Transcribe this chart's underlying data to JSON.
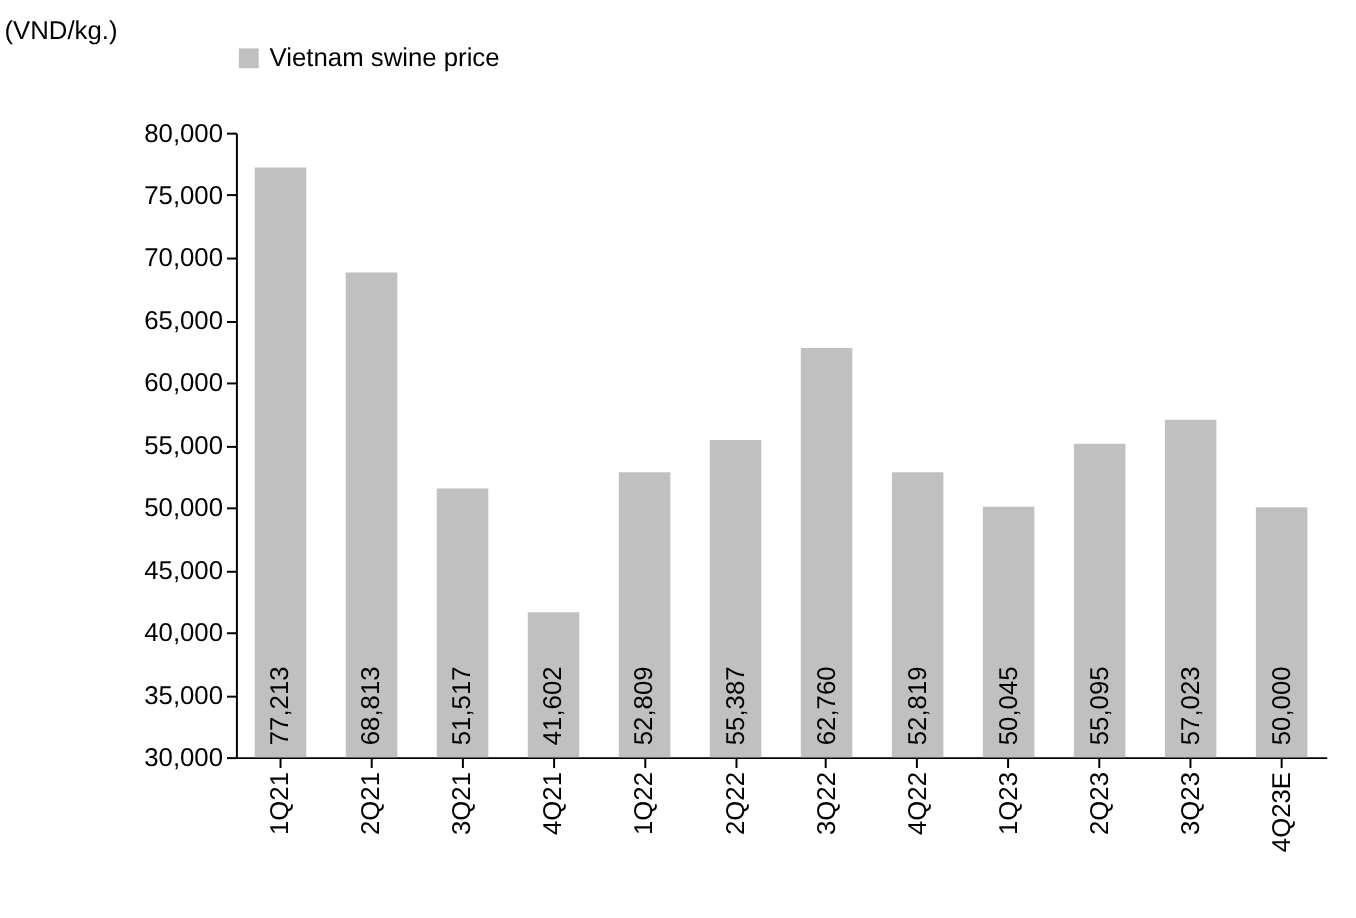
{
  "chart_data": {
    "type": "bar",
    "annotations": [
      "(VND/kg.)"
    ],
    "categories": [
      "1Q21",
      "2Q21",
      "3Q21",
      "4Q21",
      "1Q22",
      "2Q22",
      "3Q22",
      "4Q22",
      "1Q23",
      "2Q23",
      "3Q23",
      "4Q23E"
    ],
    "series": [
      {
        "name": "Vietnam swine price",
        "color": "#c0c0c0",
        "values": [
          77213,
          68813,
          51517,
          41602,
          52809,
          55387,
          62760,
          52819,
          50045,
          55095,
          57023,
          50000
        ],
        "value_labels": [
          "77,213",
          "68,813",
          "51,517",
          "41,602",
          "52,809",
          "55,387",
          "62,760",
          "52,819",
          "50,045",
          "55,095",
          "57,023",
          "50,000"
        ]
      }
    ],
    "ylim": [
      30000,
      80000
    ],
    "yticks": [
      {
        "value": 30000,
        "label": "30,000"
      },
      {
        "value": 35000,
        "label": "35,000"
      },
      {
        "value": 40000,
        "label": "40,000"
      },
      {
        "value": 45000,
        "label": "45,000"
      },
      {
        "value": 50000,
        "label": "50,000"
      },
      {
        "value": 55000,
        "label": "55,000"
      },
      {
        "value": 60000,
        "label": "60,000"
      },
      {
        "value": 65000,
        "label": "65,000"
      },
      {
        "value": 70000,
        "label": "70,000"
      },
      {
        "value": 75000,
        "label": "75,000"
      },
      {
        "value": 80000,
        "label": "80,000"
      }
    ],
    "legend": "top",
    "grid": false
  }
}
